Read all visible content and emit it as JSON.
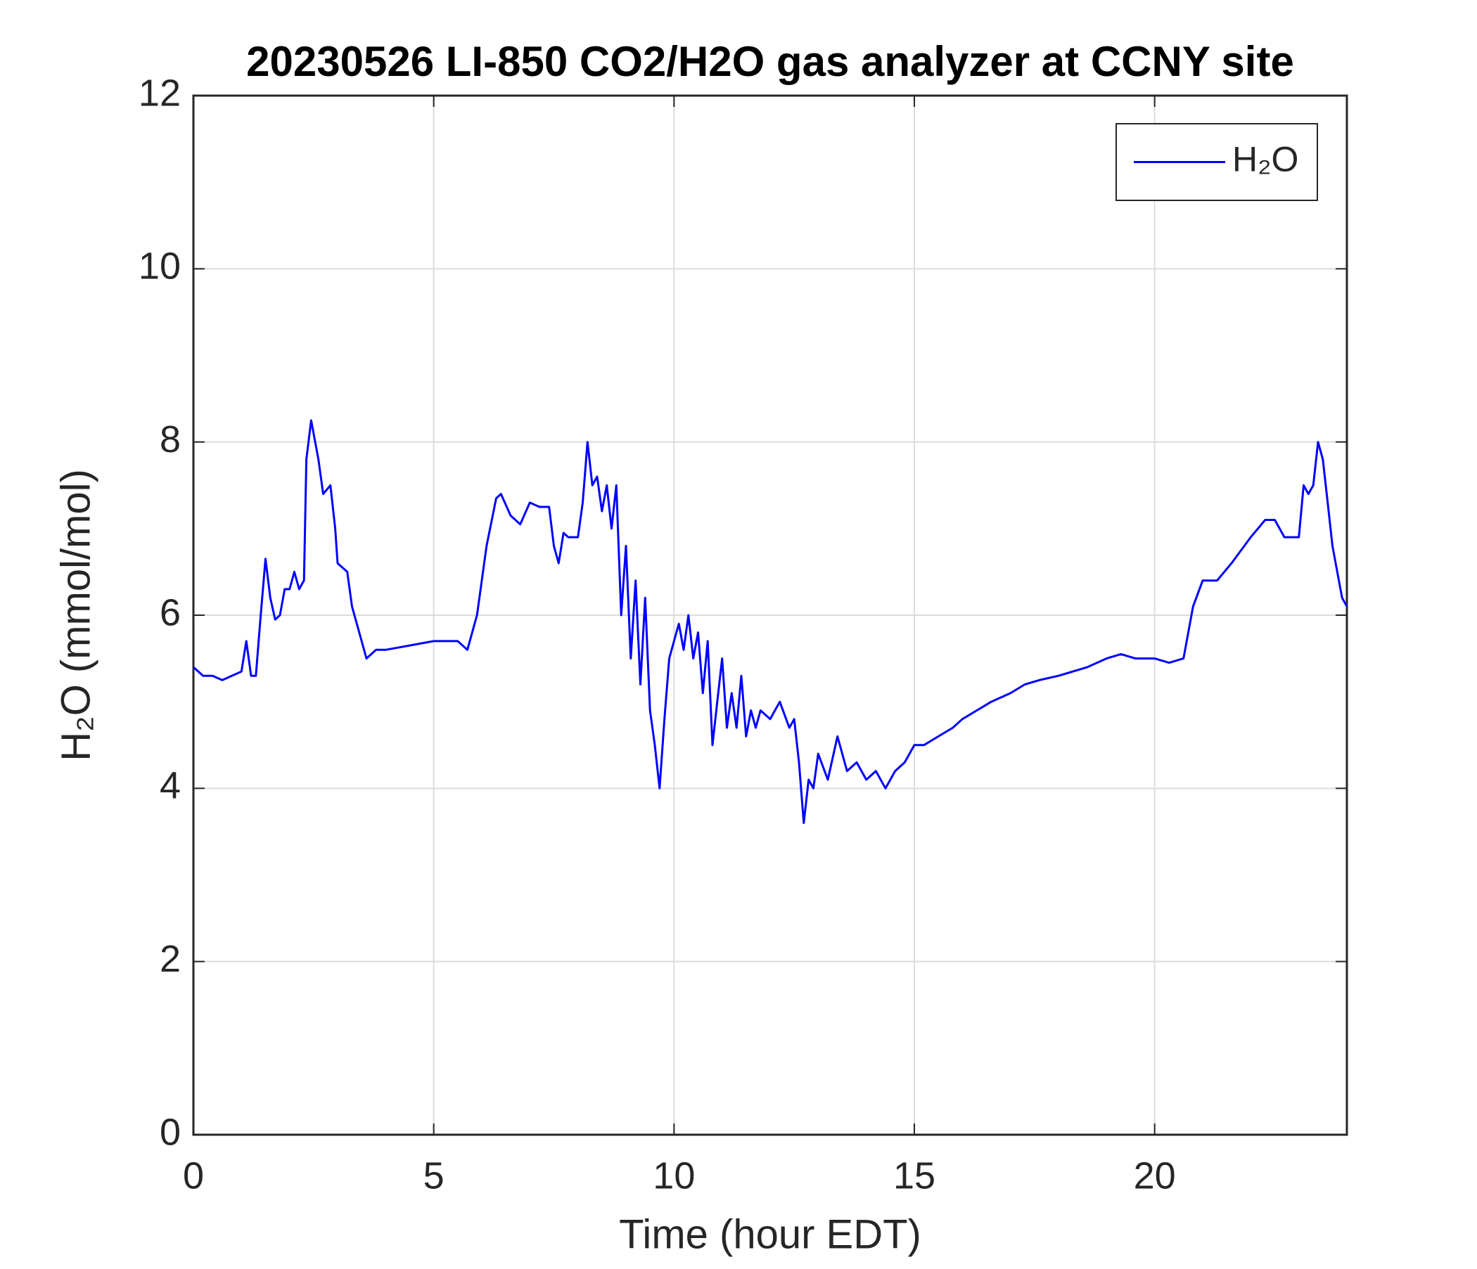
{
  "chart_data": {
    "type": "line",
    "title": "20230526 LI-850 CO2/H2O gas analyzer at CCNY site",
    "xlabel": "Time (hour EDT)",
    "ylabel": "H₂O (mmol/mol)",
    "x": [
      0,
      0.2,
      0.4,
      0.6,
      0.8,
      1.0,
      1.1,
      1.2,
      1.3,
      1.4,
      1.5,
      1.6,
      1.7,
      1.8,
      1.9,
      2.0,
      2.1,
      2.2,
      2.3,
      2.35,
      2.45,
      2.6,
      2.7,
      2.85,
      2.95,
      3.0,
      3.2,
      3.3,
      3.5,
      3.6,
      3.8,
      4.0,
      4.5,
      5.0,
      5.5,
      5.7,
      5.9,
      6.1,
      6.3,
      6.4,
      6.6,
      6.8,
      7.0,
      7.2,
      7.4,
      7.5,
      7.6,
      7.7,
      7.8,
      8.0,
      8.1,
      8.2,
      8.3,
      8.4,
      8.5,
      8.6,
      8.7,
      8.8,
      8.9,
      9.0,
      9.1,
      9.2,
      9.3,
      9.4,
      9.5,
      9.6,
      9.7,
      9.8,
      9.9,
      10.0,
      10.1,
      10.2,
      10.3,
      10.4,
      10.5,
      10.6,
      10.7,
      10.8,
      10.9,
      11.0,
      11.1,
      11.2,
      11.3,
      11.4,
      11.5,
      11.6,
      11.7,
      11.8,
      12.0,
      12.2,
      12.4,
      12.5,
      12.6,
      12.7,
      12.8,
      12.9,
      13.0,
      13.2,
      13.4,
      13.6,
      13.8,
      14.0,
      14.2,
      14.4,
      14.6,
      14.8,
      15.0,
      15.2,
      15.5,
      15.8,
      16.0,
      16.3,
      16.6,
      17.0,
      17.3,
      17.6,
      18.0,
      18.3,
      18.6,
      19.0,
      19.3,
      19.6,
      20.0,
      20.3,
      20.6,
      20.8,
      21.0,
      21.3,
      21.6,
      22.0,
      22.3,
      22.5,
      22.7,
      23.0,
      23.1,
      23.2,
      23.3,
      23.4,
      23.5,
      23.6,
      23.7,
      23.8,
      23.9,
      24.0
    ],
    "series": [
      {
        "name": "H₂O",
        "color": "#0000ff",
        "values": [
          5.4,
          5.3,
          5.3,
          5.25,
          5.3,
          5.35,
          5.7,
          5.3,
          5.3,
          6.0,
          6.65,
          6.2,
          5.95,
          6.0,
          6.3,
          6.3,
          6.5,
          6.3,
          6.4,
          7.8,
          8.25,
          7.8,
          7.4,
          7.5,
          7.0,
          6.6,
          6.5,
          6.1,
          5.7,
          5.5,
          5.6,
          5.6,
          5.65,
          5.7,
          5.7,
          5.6,
          6.0,
          6.8,
          7.35,
          7.4,
          7.15,
          7.05,
          7.3,
          7.25,
          7.25,
          6.8,
          6.6,
          6.95,
          6.9,
          6.9,
          7.3,
          8.0,
          7.5,
          7.6,
          7.2,
          7.5,
          7.0,
          7.5,
          6.0,
          6.8,
          5.5,
          6.4,
          5.2,
          6.2,
          4.9,
          4.5,
          4.0,
          4.8,
          5.5,
          5.7,
          5.9,
          5.6,
          6.0,
          5.5,
          5.8,
          5.1,
          5.7,
          4.5,
          5.0,
          5.5,
          4.7,
          5.1,
          4.7,
          5.3,
          4.6,
          4.9,
          4.7,
          4.9,
          4.8,
          5.0,
          4.7,
          4.8,
          4.3,
          3.6,
          4.1,
          4.0,
          4.4,
          4.1,
          4.6,
          4.2,
          4.3,
          4.1,
          4.2,
          4.0,
          4.2,
          4.3,
          4.5,
          4.5,
          4.6,
          4.7,
          4.8,
          4.9,
          5.0,
          5.1,
          5.2,
          5.25,
          5.3,
          5.35,
          5.4,
          5.5,
          5.55,
          5.5,
          5.5,
          5.45,
          5.5,
          6.1,
          6.4,
          6.4,
          6.6,
          6.9,
          7.1,
          7.1,
          6.9,
          6.9,
          7.5,
          7.4,
          7.5,
          8.0,
          7.8,
          7.3,
          6.8,
          6.5,
          6.2,
          6.1
        ]
      }
    ],
    "xlim": [
      0,
      24
    ],
    "xticks": [
      0,
      5,
      10,
      15,
      20
    ],
    "ylim": [
      0,
      12
    ],
    "yticks": [
      0,
      2,
      4,
      6,
      8,
      10,
      12
    ],
    "grid": true,
    "legend": "upper right"
  }
}
